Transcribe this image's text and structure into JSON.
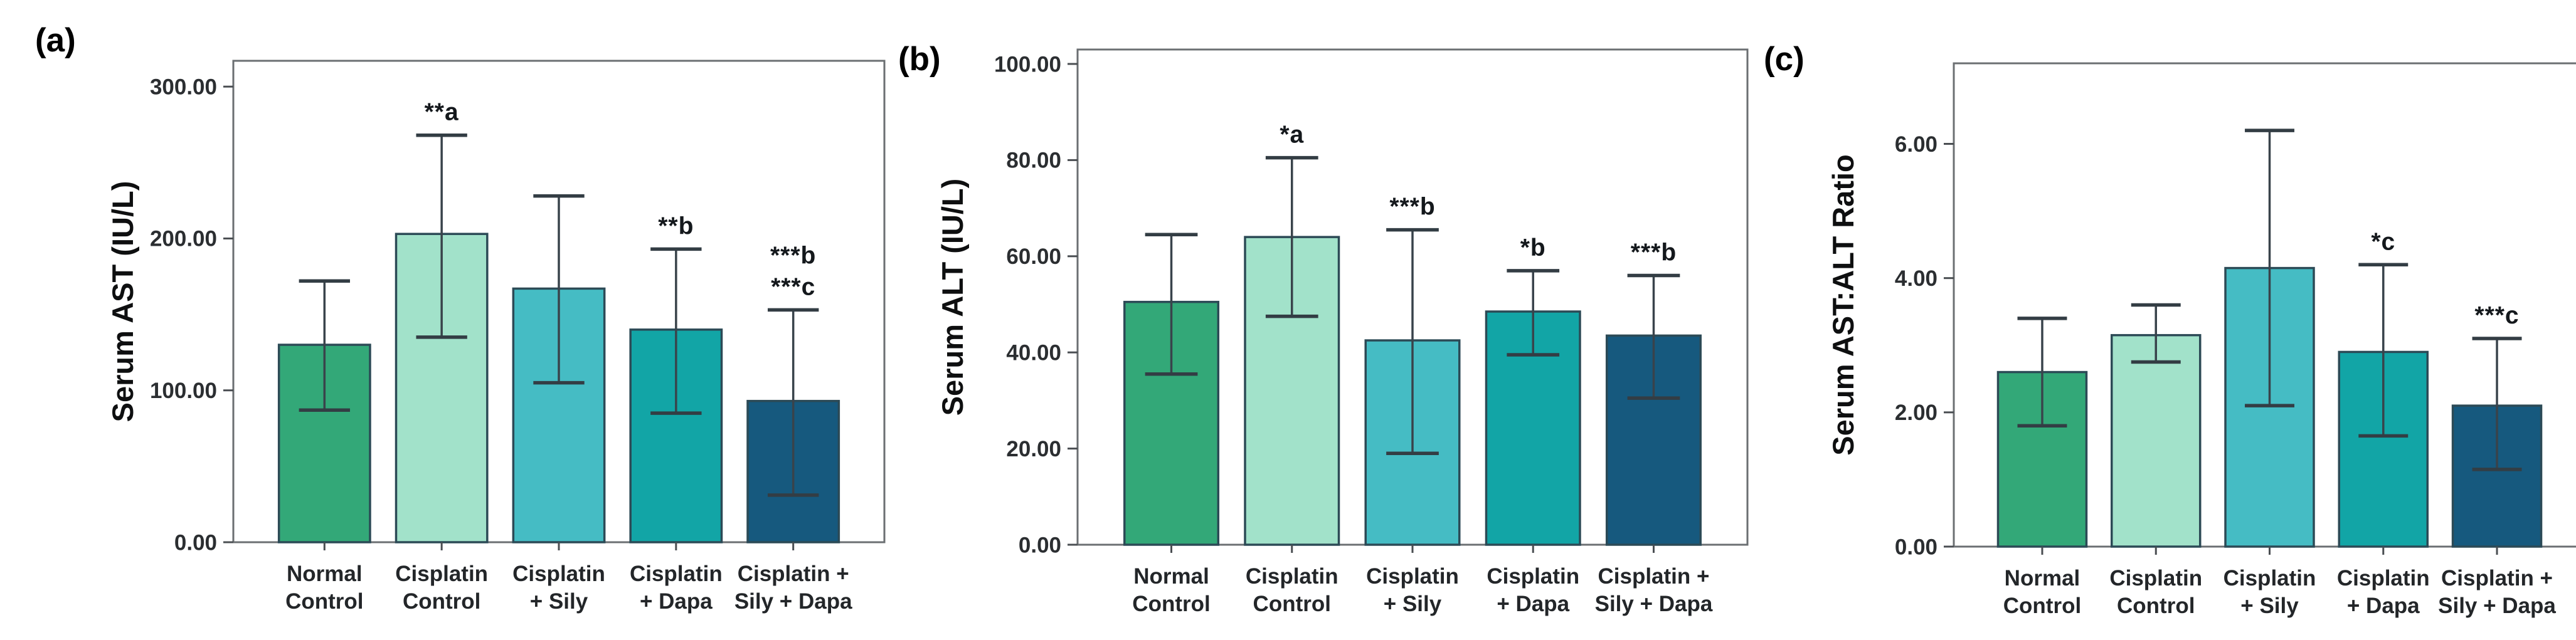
{
  "figure": {
    "background": "#ffffff",
    "description_labels": [
      "(a)",
      "(b)",
      "(c)"
    ]
  },
  "chart_data": [
    {
      "type": "bar",
      "panel_label": "(a)",
      "title": "",
      "xlabel": "",
      "ylabel": "Serum AST (IU/L)",
      "categories": [
        "Normal\nControl",
        "Cisplatin\nControl",
        "Cisplatin\n+ Sily",
        "Cisplatin\n+ Dapa",
        "Cisplatin +\nSily + Dapa"
      ],
      "values": [
        130,
        203,
        167,
        140,
        93
      ],
      "error_high": [
        172,
        268,
        228,
        193,
        153
      ],
      "error_low": [
        87,
        135,
        105,
        85,
        31
      ],
      "annotations": [
        [],
        [
          "**a"
        ],
        [],
        [
          "**b"
        ],
        [
          "***b",
          "***c"
        ]
      ],
      "bar_colors": [
        "#33A878",
        "#A2E2CA",
        "#45BCC4",
        "#12A5A6",
        "#16597E"
      ],
      "yticks": [
        0,
        100,
        200,
        300
      ],
      "ytick_labels": [
        "0.00",
        "100.00",
        "200.00",
        "300.00"
      ],
      "ylim": [
        0,
        317
      ],
      "grid": false,
      "legend": null
    },
    {
      "type": "bar",
      "panel_label": "(b)",
      "title": "",
      "xlabel": "",
      "ylabel": "Serum ALT (IU/L)",
      "categories": [
        "Normal\nControl",
        "Cisplatin\nControl",
        "Cisplatin\n+ Sily",
        "Cisplatin\n+ Dapa",
        "Cisplatin +\nSily + Dapa"
      ],
      "values": [
        50.5,
        64,
        42.5,
        48.5,
        43.5
      ],
      "error_high": [
        64.5,
        80.5,
        65.5,
        57,
        56
      ],
      "error_low": [
        35.5,
        47.5,
        19,
        39.5,
        30.5
      ],
      "annotations": [
        [],
        [
          "*a"
        ],
        [
          "***b"
        ],
        [
          "*b"
        ],
        [
          "***b"
        ]
      ],
      "bar_colors": [
        "#33A878",
        "#A2E2CA",
        "#45BCC4",
        "#12A5A6",
        "#16597E"
      ],
      "yticks": [
        0,
        20,
        40,
        60,
        80,
        100
      ],
      "ytick_labels": [
        "0.00",
        "20.00",
        "40.00",
        "60.00",
        "80.00",
        "100.00"
      ],
      "ylim": [
        0,
        103
      ],
      "grid": false,
      "legend": null
    },
    {
      "type": "bar",
      "panel_label": "(c)",
      "title": "",
      "xlabel": "",
      "ylabel": "Serum AST:ALT Ratio",
      "categories": [
        "Normal\nControl",
        "Cisplatin\nControl",
        "Cisplatin\n+ Sily",
        "Cisplatin\n+ Dapa",
        "Cisplatin +\nSily + Dapa"
      ],
      "values": [
        2.6,
        3.15,
        4.15,
        2.9,
        2.1
      ],
      "error_high": [
        3.4,
        3.6,
        6.2,
        4.2,
        3.1
      ],
      "error_low": [
        1.8,
        2.75,
        2.1,
        1.65,
        1.15
      ],
      "annotations": [
        [],
        [],
        [],
        [
          "*c"
        ],
        [
          "***c"
        ]
      ],
      "bar_colors": [
        "#33A878",
        "#A2E2CA",
        "#45BCC4",
        "#12A5A6",
        "#16597E"
      ],
      "yticks": [
        0,
        2,
        4,
        6
      ],
      "ytick_labels": [
        "0.00",
        "2.00",
        "4.00",
        "6.00"
      ],
      "ylim": [
        0,
        7.2
      ],
      "grid": false,
      "legend": null
    }
  ]
}
